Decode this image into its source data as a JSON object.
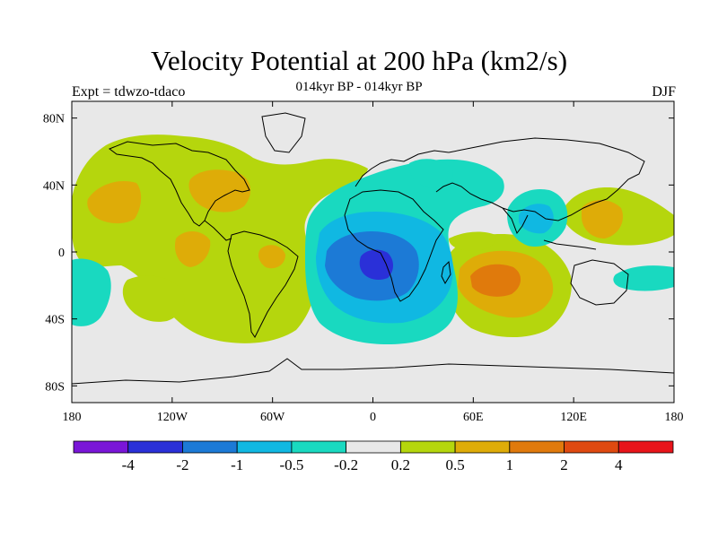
{
  "title": "Velocity Potential at 200 hPa (km2/s)",
  "subtitle": "014kyr BP - 014kyr BP",
  "left_label": "Expt = tdwzo-tdaco",
  "right_label": "DJF",
  "chart_data": {
    "type": "heatmap",
    "map": "global contour map, longitude 180W-180E, latitude 90S-90N",
    "x_ticks": [
      "180",
      "120W",
      "60W",
      "0",
      "60E",
      "120E",
      "180"
    ],
    "x_tick_values": [
      -180,
      -120,
      -60,
      0,
      60,
      120,
      180
    ],
    "y_ticks": [
      "80N",
      "40N",
      "0",
      "40S",
      "80S"
    ],
    "y_tick_values": [
      80,
      40,
      0,
      -40,
      -80
    ],
    "xlim": [
      -180,
      180
    ],
    "ylim": [
      -90,
      90
    ],
    "colorbar": {
      "labels": [
        "-4",
        "-2",
        "-1",
        "-0.5",
        "-0.2",
        "0.2",
        "0.5",
        "1",
        "2",
        "4"
      ],
      "colors": [
        "#7a16d8",
        "#2a30d8",
        "#1c7ad6",
        "#10b8e2",
        "#19d9c0",
        "#e8e8e8",
        "#b5d60d",
        "#deac08",
        "#e07a0c",
        "#df4a10",
        "#e8141a"
      ]
    },
    "features": [
      {
        "name": "strong-negative-center",
        "level": "-4 to -2",
        "lon": 5,
        "lat": -8
      },
      {
        "name": "negative-region-atlantic-africa",
        "level": "-1 to -0.2",
        "lon": 10,
        "lat": -5
      },
      {
        "name": "negative-region-indonesia",
        "level": "-0.5 to -0.2",
        "lon": 105,
        "lat": 10
      },
      {
        "name": "positive-center-indian-ocean",
        "level": "1 to 2",
        "lon": 68,
        "lat": -15
      },
      {
        "name": "positive-region-north-america",
        "level": "0.2 to 1",
        "lon": -95,
        "lat": 25
      },
      {
        "name": "positive-region-north-pacific",
        "level": "0.2 to 1",
        "lon": -150,
        "lat": 30
      },
      {
        "name": "positive-region-west-pacific",
        "level": "0.2 to 1",
        "lon": 145,
        "lat": 15
      }
    ]
  }
}
